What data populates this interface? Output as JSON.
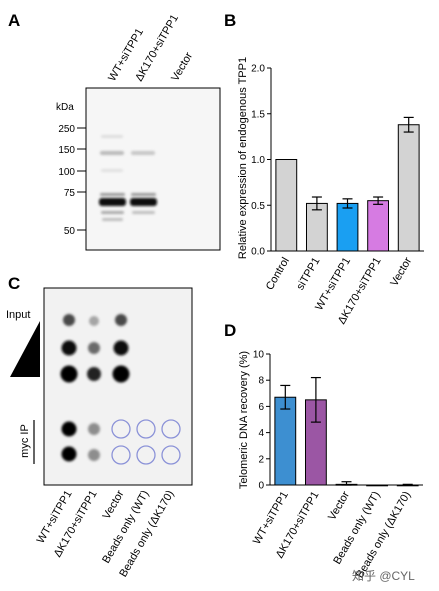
{
  "panels": {
    "A": {
      "letter": "A",
      "lanes": [
        "WT+siTPP1",
        "ΔK170+siTPP1",
        "Vector"
      ],
      "unit_label": "kDa",
      "markers": [
        "250",
        "150",
        "100",
        "75",
        "50"
      ]
    },
    "B": {
      "letter": "B",
      "ylabel": "Relative expression of endogenous TPP1",
      "yticks": [
        "0.0",
        "0.5",
        "1.0",
        "1.5",
        "2.0"
      ]
    },
    "C": {
      "letter": "C",
      "row_labels": {
        "input": "Input",
        "ip": "myc IP"
      },
      "columns": [
        "WT+siTPP1",
        "ΔK170+siTPP1",
        "Vector",
        "Beads only (WT)",
        "Beads only (ΔK170)"
      ]
    },
    "D": {
      "letter": "D",
      "ylabel": "Telomeric DNA recovery (%)",
      "yticks": [
        "0",
        "2",
        "4",
        "6",
        "8",
        "10"
      ]
    }
  },
  "watermark": "知乎 @CYL",
  "colors": {
    "gray_bar": "#d3d3d3",
    "blue_bar": "#1a9ff2",
    "magenta_bar": "#d67be2",
    "steel_blue_bar": "#3d8fd1",
    "purple_bar": "#9b56a4",
    "empty_circle": "#8c93d8"
  },
  "chart_data": [
    {
      "panel": "B",
      "type": "bar",
      "categories": [
        "Control",
        "siTPP1",
        "WT+siTPP1",
        "ΔK170+siTPP1",
        "Vector"
      ],
      "values": [
        1.0,
        0.52,
        0.52,
        0.55,
        1.38
      ],
      "errors": [
        0,
        0.07,
        0.05,
        0.04,
        0.08
      ],
      "colors": [
        "#d3d3d3",
        "#d3d3d3",
        "#1a9ff2",
        "#d67be2",
        "#d3d3d3"
      ],
      "ylim": [
        0,
        2.0
      ],
      "ylabel": "Relative expression of endogenous TPP1",
      "xlabel": ""
    },
    {
      "panel": "D",
      "type": "bar",
      "categories": [
        "WT+siTPP1",
        "ΔK170+siTPP1",
        "Vector",
        "Beads only (WT)",
        "Beads only (ΔK170)"
      ],
      "values": [
        6.7,
        6.5,
        0.05,
        0.0,
        0.0
      ],
      "errors": [
        0.9,
        1.7,
        0.2,
        0,
        0.05
      ],
      "colors": [
        "#3d8fd1",
        "#9b56a4",
        "#d3d3d3",
        "#d3d3d3",
        "#d3d3d3"
      ],
      "ylim": [
        0,
        10
      ],
      "ylabel": "Telomeric DNA recovery (%)",
      "xlabel": ""
    }
  ]
}
